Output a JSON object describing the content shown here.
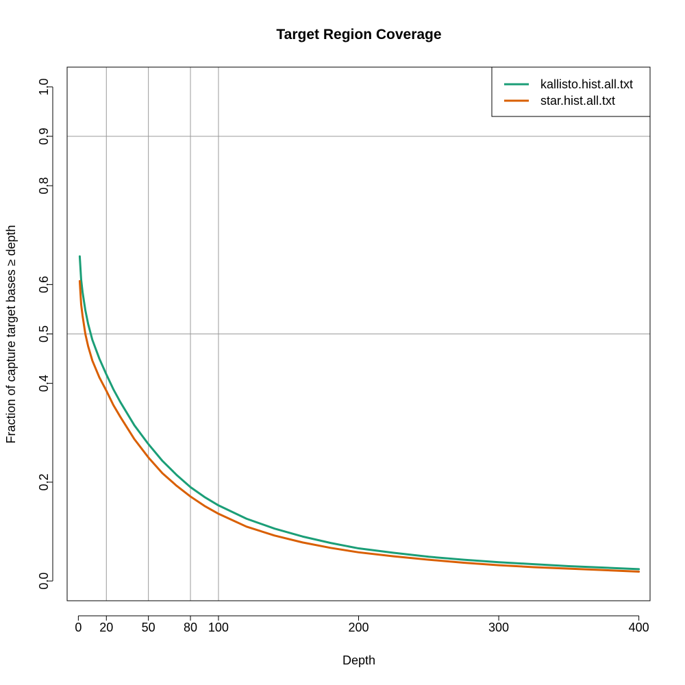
{
  "chart_data": {
    "type": "line",
    "title": "Target Region Coverage",
    "xlabel": "Depth",
    "ylabel": "Fraction of capture target bases ≥ depth",
    "xlim": [
      -8,
      408
    ],
    "ylim": [
      -0.04,
      1.04
    ],
    "x_ticks": [
      0,
      20,
      50,
      80,
      100,
      200,
      300,
      400
    ],
    "y_ticks": [
      0.0,
      0.2,
      0.4,
      0.5,
      0.6,
      0.8,
      0.9,
      1.0
    ],
    "x_tick_labels": [
      "0",
      "20",
      "50",
      "80",
      "100",
      "200",
      "300",
      "400"
    ],
    "y_tick_labels": [
      "0.0",
      "0.2",
      "0.4",
      "0.5",
      "0.6",
      "0.8",
      "0.9",
      "1.0"
    ],
    "vertical_reference_lines": [
      20,
      50,
      80,
      100
    ],
    "horizontal_reference_lines": [
      0.5,
      0.9
    ],
    "legend_position": "top-right",
    "series": [
      {
        "name": "kallisto.hist.all.txt",
        "color": "#1B9E77",
        "x": [
          1,
          2,
          3,
          5,
          7,
          10,
          15,
          20,
          25,
          30,
          40,
          50,
          60,
          70,
          80,
          90,
          100,
          120,
          140,
          160,
          180,
          200,
          225,
          250,
          275,
          300,
          325,
          350,
          375,
          400
        ],
        "y": [
          0.657,
          0.61,
          0.585,
          0.548,
          0.52,
          0.488,
          0.45,
          0.418,
          0.388,
          0.362,
          0.315,
          0.277,
          0.243,
          0.215,
          0.19,
          0.17,
          0.153,
          0.126,
          0.106,
          0.09,
          0.077,
          0.066,
          0.057,
          0.049,
          0.043,
          0.038,
          0.034,
          0.03,
          0.027,
          0.024
        ]
      },
      {
        "name": "star.hist.all.txt",
        "color": "#D95F02",
        "x": [
          1,
          2,
          3,
          5,
          7,
          10,
          15,
          20,
          25,
          30,
          40,
          50,
          60,
          70,
          80,
          90,
          100,
          120,
          140,
          160,
          180,
          200,
          225,
          250,
          275,
          300,
          325,
          350,
          375,
          400
        ],
        "y": [
          0.607,
          0.56,
          0.537,
          0.5,
          0.475,
          0.446,
          0.412,
          0.385,
          0.356,
          0.332,
          0.287,
          0.25,
          0.218,
          0.193,
          0.171,
          0.152,
          0.136,
          0.11,
          0.092,
          0.078,
          0.067,
          0.058,
          0.05,
          0.043,
          0.037,
          0.032,
          0.028,
          0.025,
          0.022,
          0.019
        ]
      }
    ]
  }
}
